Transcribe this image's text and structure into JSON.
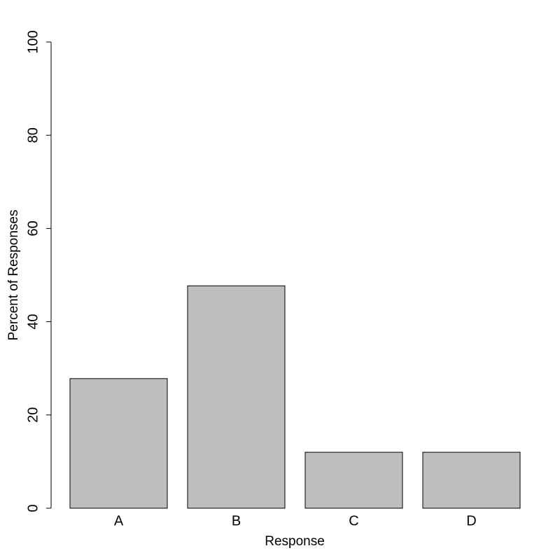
{
  "chart_data": {
    "type": "bar",
    "x_label": "Response",
    "y_label": "Percent of Responses",
    "categories": [
      "A",
      "B",
      "C",
      "D"
    ],
    "values": [
      27.8,
      47.7,
      12.0,
      12.0
    ],
    "color": "#bebebe",
    "ylim": [
      0,
      100
    ],
    "yticks": [
      0,
      20,
      40,
      60,
      80,
      100
    ],
    "grid": false
  }
}
